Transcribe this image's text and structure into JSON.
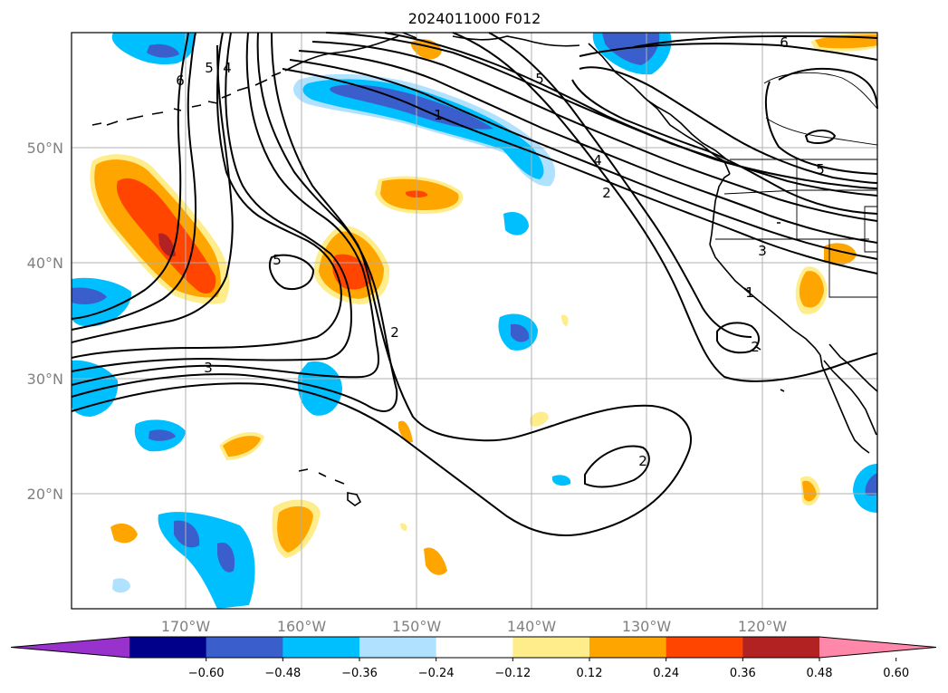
{
  "title": "2024011000 F012",
  "map": {
    "lon_labels": [
      "170°W",
      "160°W",
      "150°W",
      "140°W",
      "130°W",
      "120°W"
    ],
    "lat_labels": [
      "50°N",
      "40°N",
      "30°N",
      "20°N"
    ],
    "contour_labels": [
      "6",
      "5",
      "4",
      "1",
      "5",
      "4",
      "2",
      "6",
      "5",
      "5",
      "2",
      "3",
      "2",
      "3",
      "1",
      "2"
    ],
    "gridlines": true,
    "coastlines": true
  },
  "colorbar": {
    "ticks": [
      "−0.60",
      "−0.48",
      "−0.36",
      "−0.24",
      "−0.12",
      "0.12",
      "0.24",
      "0.36",
      "0.48",
      "0.60"
    ],
    "colors": [
      "#9932cc",
      "#00008b",
      "#3a5fcd",
      "#00bfff",
      "#b0e2ff",
      "#ffffff",
      "#ffec8b",
      "#ffa500",
      "#ff4500",
      "#b22222",
      "#ff88aa"
    ],
    "extend": "both"
  }
}
